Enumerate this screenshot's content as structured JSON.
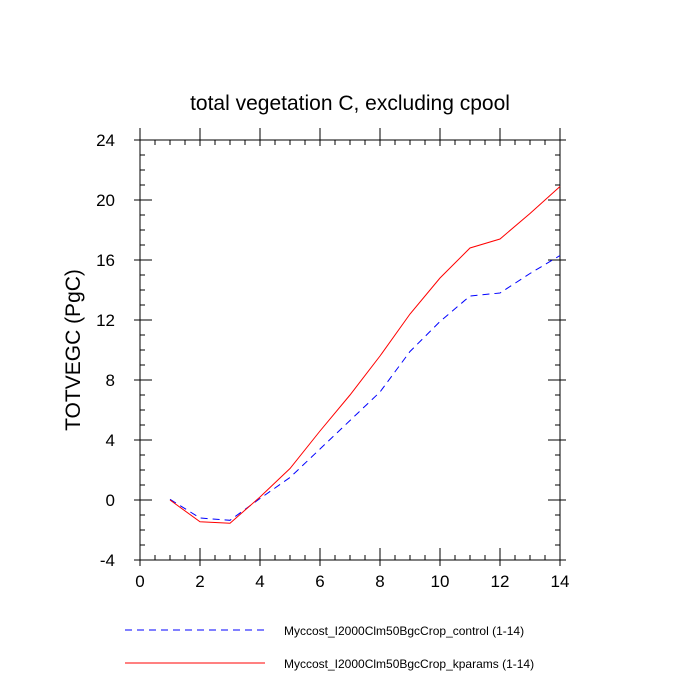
{
  "chart_data": {
    "type": "line",
    "title": "total vegetation C, excluding cpool",
    "ylabel": "TOTVEGC  (PgC)",
    "xlabel": "",
    "xlim": [
      0,
      14
    ],
    "ylim": [
      -4,
      24
    ],
    "xticks": [
      0,
      2,
      4,
      6,
      8,
      10,
      12,
      14
    ],
    "xtick_labels": [
      "0",
      "2",
      "4",
      "6",
      "8",
      "10",
      "12",
      "14"
    ],
    "yticks": [
      -4,
      0,
      4,
      8,
      12,
      16,
      20,
      24
    ],
    "ytick_labels": [
      "-4",
      "0",
      "4",
      "8",
      "12",
      "16",
      "20",
      "24"
    ],
    "grid": false,
    "legend_position": "bottom",
    "x": [
      1,
      2,
      3,
      4,
      5,
      6,
      7,
      8,
      9,
      10,
      11,
      12,
      13,
      14
    ],
    "series": [
      {
        "name": "Myccost_I2000Clm50BgcCrop_control (1-14)",
        "color": "#0000ff",
        "dash": "dashed",
        "values": [
          0.05,
          -1.2,
          -1.35,
          0.1,
          1.5,
          3.4,
          5.3,
          7.2,
          9.9,
          11.9,
          13.6,
          13.8,
          15.1,
          16.3
        ]
      },
      {
        "name": "Myccost_I2000Clm50BgcCrop_kparams (1-14)",
        "color": "#ff0000",
        "dash": "solid",
        "values": [
          0.0,
          -1.45,
          -1.55,
          0.2,
          2.1,
          4.6,
          7.0,
          9.6,
          12.4,
          14.8,
          16.8,
          17.4,
          19.1,
          20.9
        ]
      }
    ]
  }
}
